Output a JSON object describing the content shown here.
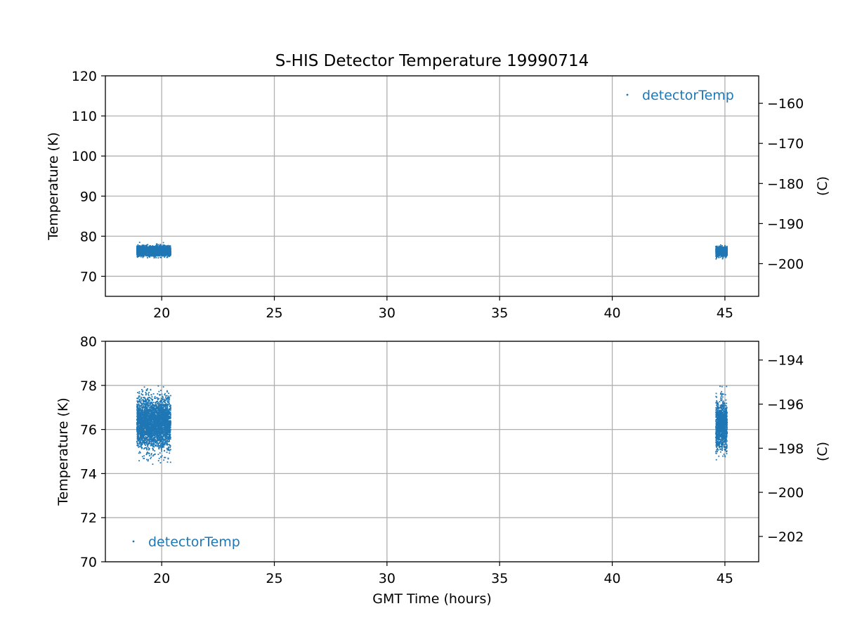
{
  "figure": {
    "title": "S-HIS Detector Temperature 19990714"
  },
  "colors": {
    "series": "#1f77b4",
    "grid": "#b0b0b0",
    "axes": "#000000",
    "background": "#ffffff"
  },
  "chart_data": [
    {
      "type": "scatter",
      "title": "S-HIS Detector Temperature 19990714",
      "xlabel": "",
      "ylabel": "Temperature (K)",
      "ylabel_right": "(C)",
      "xlim": [
        17.5,
        46.5
      ],
      "ylim": [
        65,
        120
      ],
      "ylim_right": [
        -208.15,
        -153.15
      ],
      "x_ticks": [
        20,
        25,
        30,
        35,
        40,
        45
      ],
      "y_ticks": [
        70,
        80,
        90,
        100,
        110,
        120
      ],
      "y_ticks_right": [
        -200,
        -190,
        -180,
        -170,
        -160
      ],
      "grid": true,
      "legend_position": "upper right",
      "series": [
        {
          "name": "detectorTemp",
          "marker": "point",
          "clusters": [
            {
              "x_range": [
                18.9,
                20.4
              ],
              "y_mean": 76.3,
              "y_spread": 0.55,
              "y_min": 74.4,
              "y_max": 79.0
            },
            {
              "x_range": [
                44.6,
                45.1
              ],
              "y_mean": 76.2,
              "y_spread": 0.55,
              "y_min": 74.3,
              "y_max": 79.1
            }
          ]
        }
      ]
    },
    {
      "type": "scatter",
      "title": "",
      "xlabel": "GMT Time (hours)",
      "ylabel": "Temperature (K)",
      "ylabel_right": "(C)",
      "xlim": [
        17.5,
        46.5
      ],
      "ylim": [
        70,
        80
      ],
      "ylim_right": [
        -203.15,
        -193.15
      ],
      "x_ticks": [
        20,
        25,
        30,
        35,
        40,
        45
      ],
      "y_ticks": [
        70,
        72,
        74,
        76,
        78,
        80
      ],
      "y_ticks_right": [
        -202,
        -200,
        -198,
        -196,
        -194
      ],
      "grid": true,
      "legend_position": "lower left",
      "series": [
        {
          "name": "detectorTemp",
          "marker": "point",
          "clusters": [
            {
              "x_range": [
                18.9,
                20.4
              ],
              "y_mean": 76.3,
              "y_spread": 0.55,
              "y_min": 74.4,
              "y_max": 79.0
            },
            {
              "x_range": [
                44.6,
                45.1
              ],
              "y_mean": 76.2,
              "y_spread": 0.55,
              "y_min": 74.3,
              "y_max": 79.1
            }
          ]
        }
      ]
    }
  ]
}
